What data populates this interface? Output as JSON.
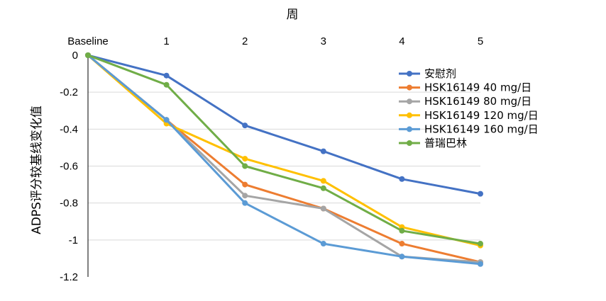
{
  "chart_data": {
    "type": "line",
    "xlabel": "周",
    "ylabel": "ADPS评分较基线变化值",
    "categories": [
      "Baseline",
      "1",
      "2",
      "3",
      "4",
      "5"
    ],
    "ylim": [
      -1.2,
      0
    ],
    "yticks": [
      0,
      -0.2,
      -0.4,
      -0.6,
      -0.8,
      -1,
      -1.2
    ],
    "ytick_labels": [
      "0",
      "-0.2",
      "-0.4",
      "-0.6",
      "-0.8",
      "-1",
      "-1.2"
    ],
    "grid": true,
    "legend_position": "right",
    "series": [
      {
        "name": "安慰剂",
        "color": "#4472C4",
        "values": [
          0,
          -0.11,
          -0.38,
          -0.52,
          -0.67,
          -0.75
        ]
      },
      {
        "name": "HSK16149 40 mg/日",
        "color": "#ED7D31",
        "values": [
          0,
          -0.35,
          -0.7,
          -0.83,
          -1.02,
          -1.12
        ]
      },
      {
        "name": "HSK16149 80 mg/日",
        "color": "#A5A5A5",
        "values": [
          0,
          -0.35,
          -0.76,
          -0.83,
          -1.09,
          -1.12
        ]
      },
      {
        "name": "HSK16149 120 mg/日",
        "color": "#FFC000",
        "values": [
          0,
          -0.37,
          -0.56,
          -0.68,
          -0.93,
          -1.03
        ]
      },
      {
        "name": "HSK16149 160 mg/日",
        "color": "#5B9BD5",
        "values": [
          0,
          -0.35,
          -0.8,
          -1.02,
          -1.09,
          -1.13
        ]
      },
      {
        "name": "普瑞巴林",
        "color": "#70AD47",
        "values": [
          0,
          -0.16,
          -0.6,
          -0.72,
          -0.95,
          -1.02
        ]
      }
    ]
  }
}
